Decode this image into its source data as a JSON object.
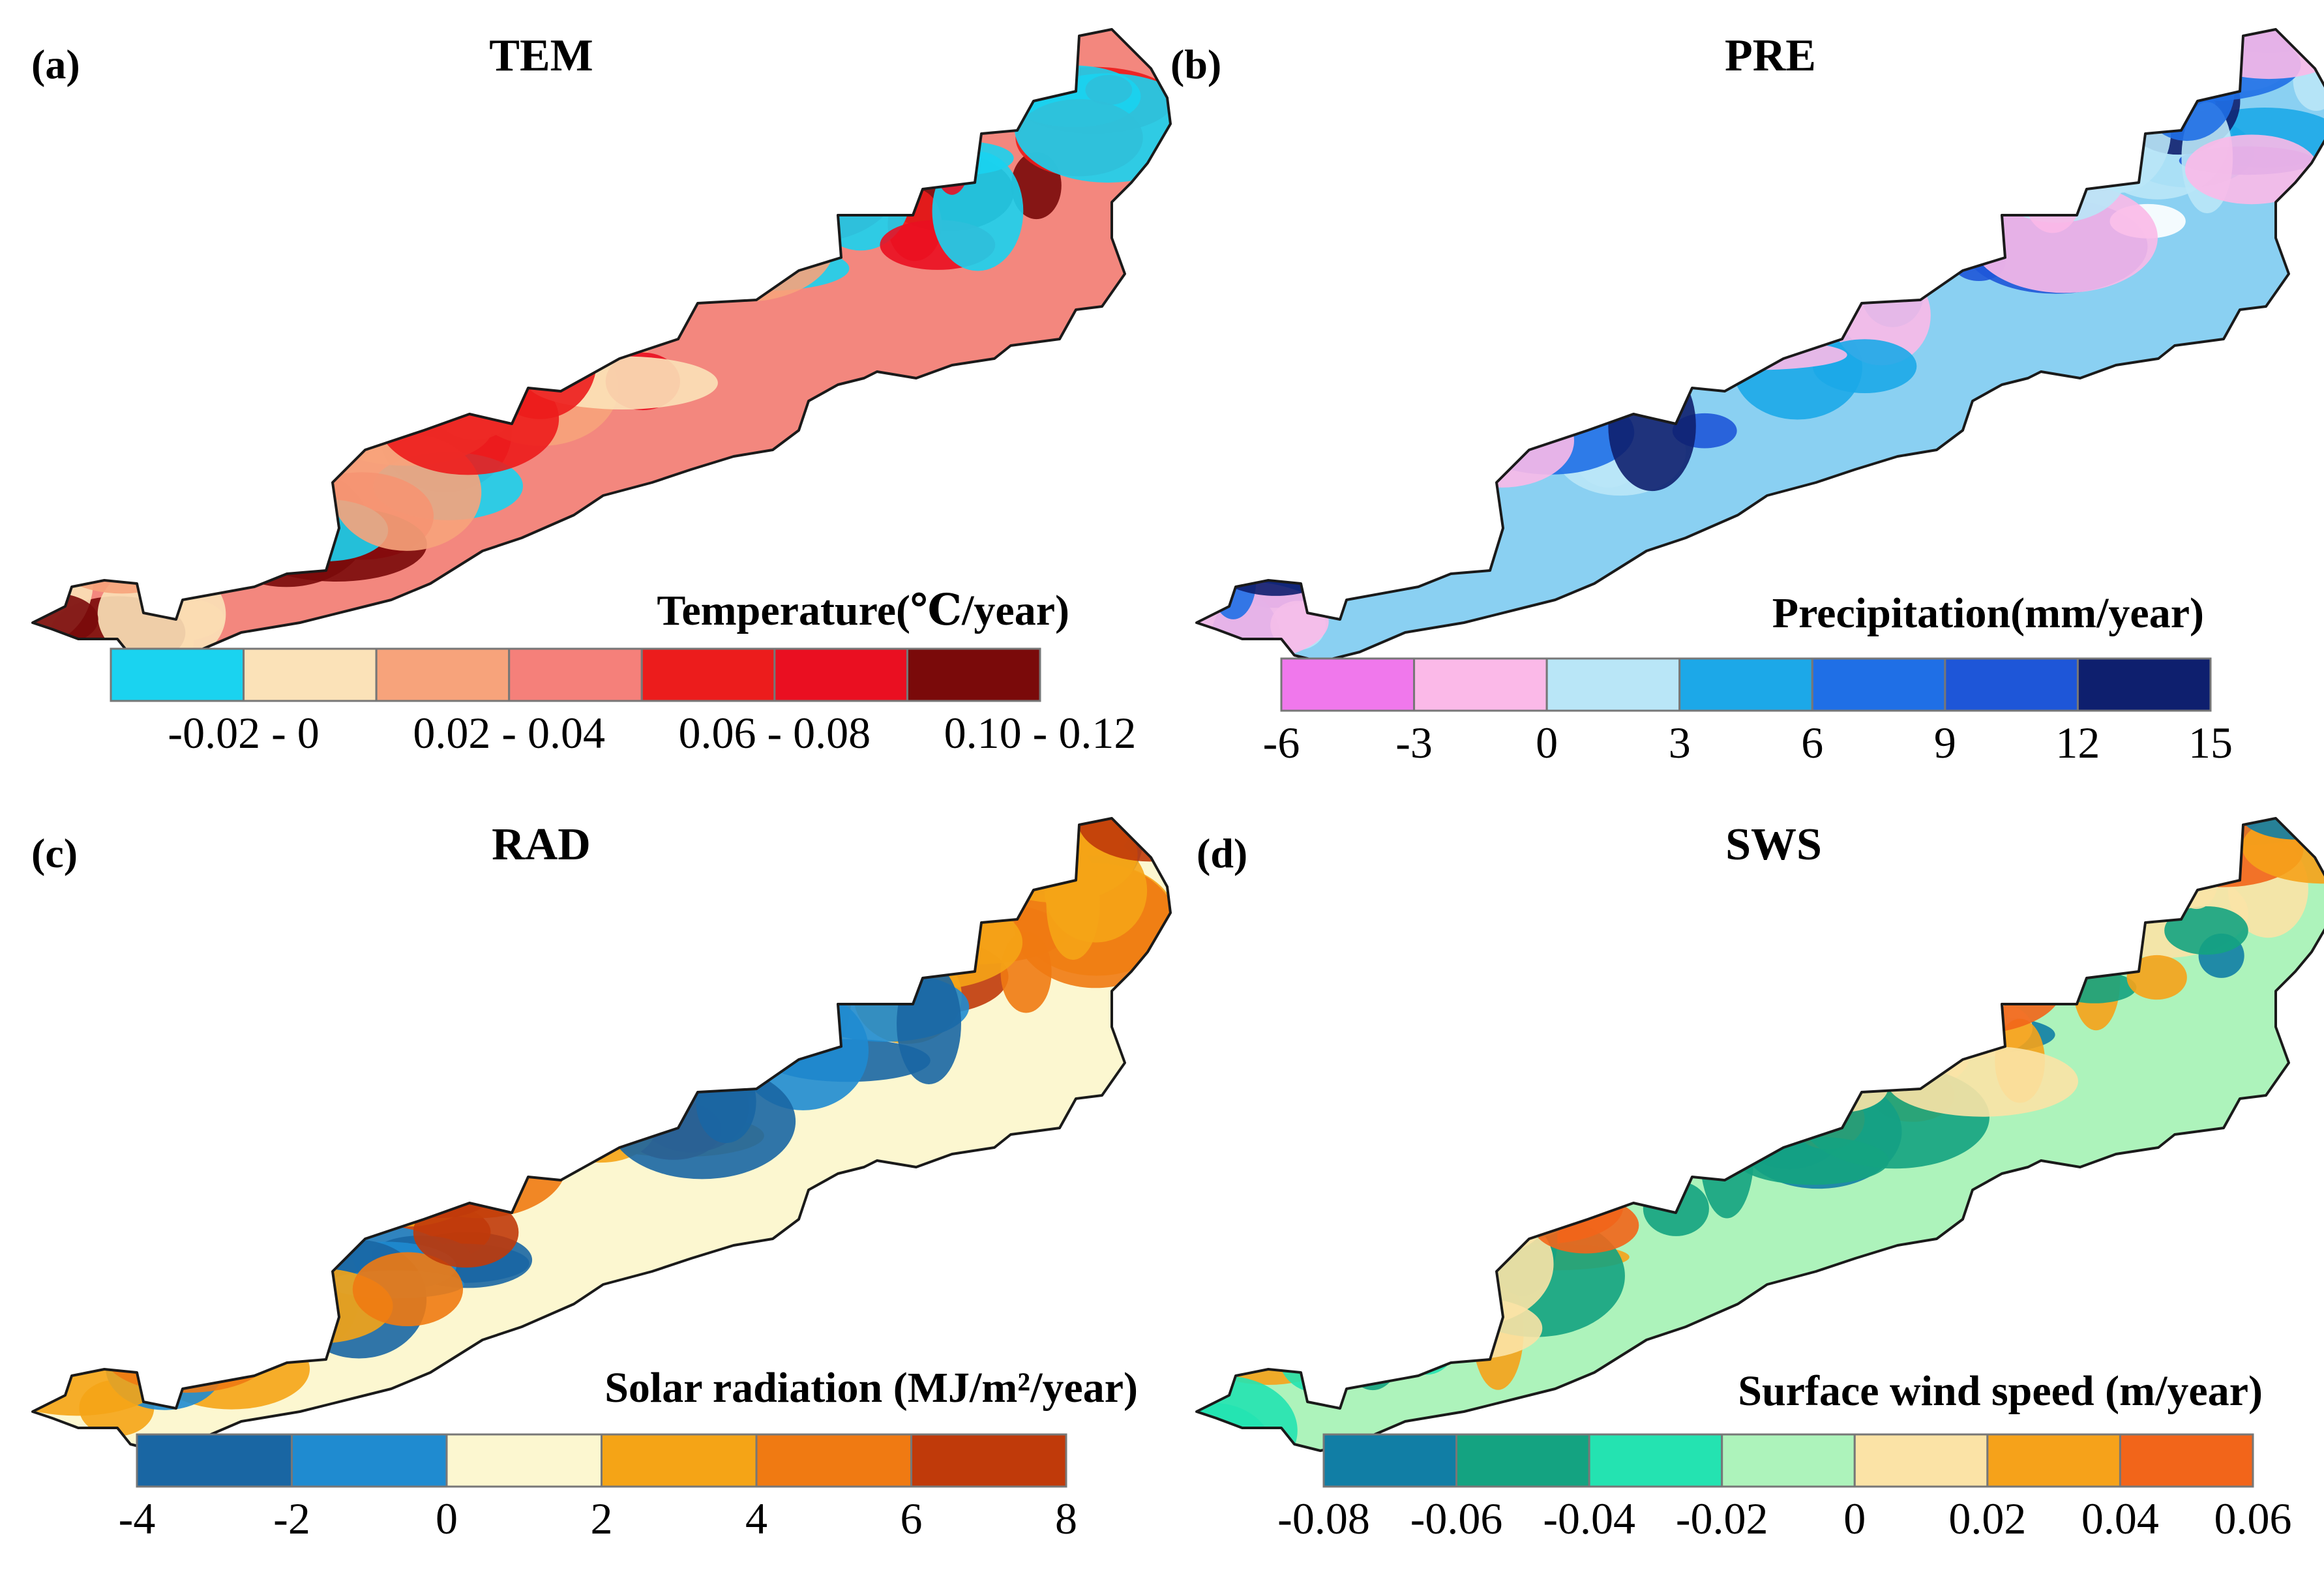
{
  "panels": [
    {
      "id": "a",
      "letter": "(a)",
      "title": "TEM",
      "colorbar_label": "Temperature(℃/year)",
      "colors": [
        "#1ad3f0",
        "#fbe2b8",
        "#f7a37b",
        "#f5807a",
        "#ec1c1c",
        "#ea0f21",
        "#7a0a0a"
      ],
      "ticks": [
        "-0.02 - 0",
        "0.02 - 0.04",
        "0.06 - 0.08",
        "0.10 - 0.12"
      ],
      "background": "#f3877e",
      "patches": [
        "#ec1c1c",
        "#ea0f21",
        "#f7a37b",
        "#fbe2b8",
        "#1ad3f0",
        "#7a0a0a"
      ]
    },
    {
      "id": "b",
      "letter": "(b)",
      "title": "PRE",
      "colorbar_label": "Precipitation(mm/year)",
      "colors": [
        "#f078ec",
        "#fbb9e8",
        "#b9e6f7",
        "#1ca8e8",
        "#1f6fe6",
        "#1e56d8",
        "#0e1f6e"
      ],
      "ticks": [
        "-6",
        "-3",
        "0",
        "3",
        "6",
        "9",
        "12",
        "15"
      ],
      "background": "#8ad0f2",
      "patches": [
        "#1f6fe6",
        "#1e56d8",
        "#1ca8e8",
        "#b9e6f7",
        "#fbb9e8",
        "#ffffff",
        "#0e1f6e"
      ]
    },
    {
      "id": "c",
      "letter": "(c)",
      "title": "RAD",
      "colorbar_label": "Solar radiation (MJ/m²/year)",
      "colors": [
        "#1966a3",
        "#1f8bd0",
        "#fcf7d0",
        "#f5a416",
        "#f07a12",
        "#c03a0a"
      ],
      "ticks": [
        "-4",
        "-2",
        "0",
        "2",
        "4",
        "6",
        "8"
      ],
      "background": "#fcf7d0",
      "patches": [
        "#f5a416",
        "#f07a12",
        "#1f8bd0",
        "#1966a3",
        "#c03a0a",
        "#f5a416"
      ]
    },
    {
      "id": "d",
      "letter": "(d)",
      "title": "SWS",
      "colorbar_label": "Surface wind speed (m/year)",
      "colors": [
        "#117ea5",
        "#14a381",
        "#24e3b1",
        "#adf3bb",
        "#fbe3a6",
        "#f6a21a",
        "#f2651a"
      ],
      "ticks": [
        "-0.08",
        "-0.06",
        "-0.04",
        "-0.02",
        "0",
        "0.02",
        "0.04",
        "0.06"
      ],
      "background": "#adf3bb",
      "patches": [
        "#24e3b1",
        "#14a381",
        "#117ea5",
        "#fbe3a6",
        "#f6a21a",
        "#f2651a"
      ]
    }
  ]
}
